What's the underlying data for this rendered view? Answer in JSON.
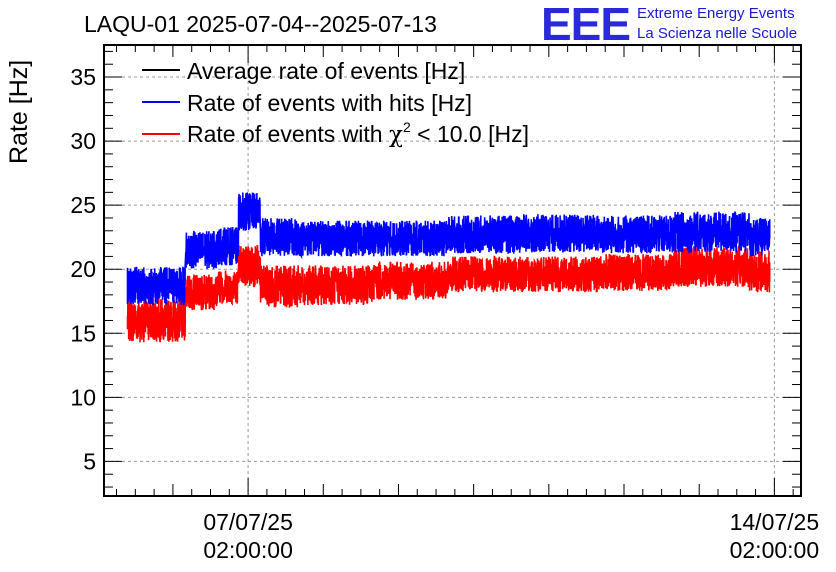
{
  "chart_data": {
    "type": "line",
    "title": "LAQU-01 2025-07-04--2025-07-13",
    "ylabel": "Rate [Hz]",
    "xlabel": "",
    "ylim": [
      2.3,
      37.5
    ],
    "xlim": [
      "2025-07-05 04:00",
      "2025-07-14 10:30"
    ],
    "y_ticks": [
      5,
      10,
      15,
      20,
      25,
      30,
      35
    ],
    "x_ticks": [
      {
        "x": "2025-07-07 02:00",
        "label_date": "07/07/25",
        "label_time": "02:00:00"
      },
      {
        "x": "2025-07-14 02:00",
        "label_date": "14/07/25",
        "label_time": "02:00:00"
      }
    ],
    "grid": true,
    "legend_position": "top-left",
    "series": [
      {
        "name": "Average rate of events [Hz]",
        "color": "#000000",
        "x": [],
        "values": []
      },
      {
        "name": "Rate of events with hits [Hz]",
        "color": "#0000ff",
        "x": [
          "2025-07-06 00:00",
          "2025-07-06 12:00",
          "2025-07-06 22:00",
          "2025-07-07 05:00",
          "2025-07-07 12:00",
          "2025-07-08 00:00",
          "2025-07-09 00:00",
          "2025-07-10 00:00",
          "2025-07-11 00:00",
          "2025-07-12 00:00",
          "2025-07-13 00:00",
          "2025-07-14 00:00"
        ],
        "values": [
          18.7,
          21.5,
          21.8,
          24.4,
          22.5,
          22.4,
          22.3,
          22.7,
          22.8,
          22.7,
          22.8,
          22.5
        ],
        "band_min": [
          17.2,
          20.0,
          20.3,
          23.0,
          21.0,
          21.0,
          21.0,
          21.2,
          21.3,
          21.2,
          21.3,
          21.0
        ],
        "band_max": [
          20.2,
          23.0,
          23.3,
          26.0,
          24.0,
          23.8,
          23.8,
          24.2,
          24.3,
          24.2,
          24.5,
          24.0
        ]
      },
      {
        "name": "Rate of events with χ² < 10.0 [Hz]",
        "label_prefix": "Rate of events with ",
        "label_chi": "χ",
        "label_sup": "2",
        "label_suffix": " < 10.0 [Hz]",
        "color": "#ff0000",
        "x": [
          "2025-07-06 00:00",
          "2025-07-06 12:00",
          "2025-07-06 22:00",
          "2025-07-07 05:00",
          "2025-07-07 12:00",
          "2025-07-08 00:00",
          "2025-07-09 00:00",
          "2025-07-10 00:00",
          "2025-07-11 00:00",
          "2025-07-12 00:00",
          "2025-07-13 00:00",
          "2025-07-14 00:00"
        ],
        "values": [
          16.0,
          18.2,
          18.6,
          20.2,
          18.6,
          18.6,
          19.0,
          19.5,
          19.5,
          19.7,
          20.1,
          19.8
        ],
        "band_min": [
          14.3,
          16.8,
          17.3,
          18.6,
          17.0,
          17.2,
          17.6,
          18.2,
          18.2,
          18.3,
          18.6,
          18.2
        ],
        "band_max": [
          17.7,
          19.6,
          20.0,
          22.0,
          20.3,
          20.3,
          20.6,
          21.0,
          21.0,
          21.2,
          21.8,
          21.5
        ]
      }
    ]
  },
  "logo": {
    "mark": "EEE",
    "line1": "Extreme Energy Events",
    "line2": "La Scienza nelle Scuole",
    "color": "#1a1ad0"
  }
}
